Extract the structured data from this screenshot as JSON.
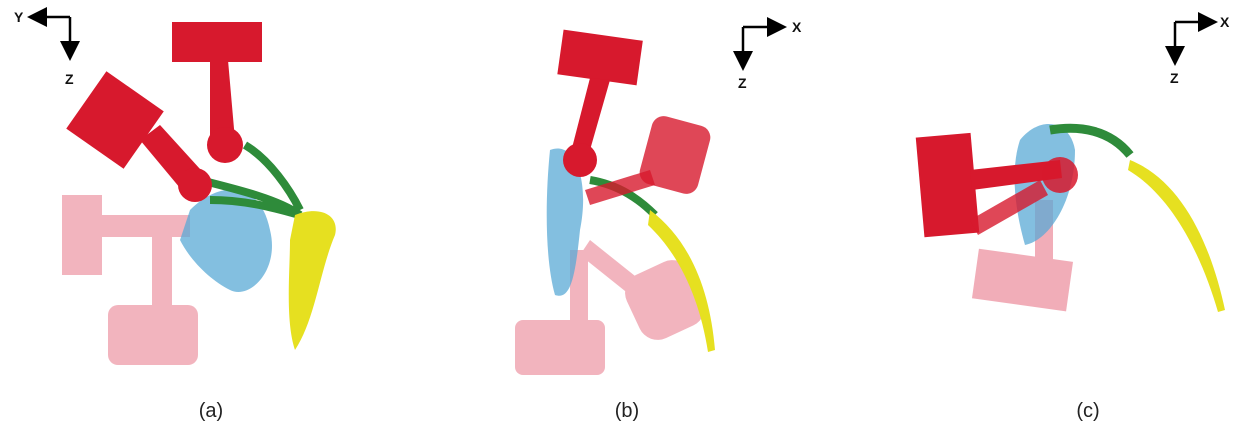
{
  "panels": [
    {
      "caption": "(a)",
      "axes": {
        "horizontal": "Y",
        "vertical": "Z"
      }
    },
    {
      "caption": "(b)",
      "axes": {
        "horizontal": "X",
        "vertical": "Z"
      }
    },
    {
      "caption": "(c)",
      "axes": {
        "horizontal": "X",
        "vertical": "Z"
      }
    }
  ]
}
